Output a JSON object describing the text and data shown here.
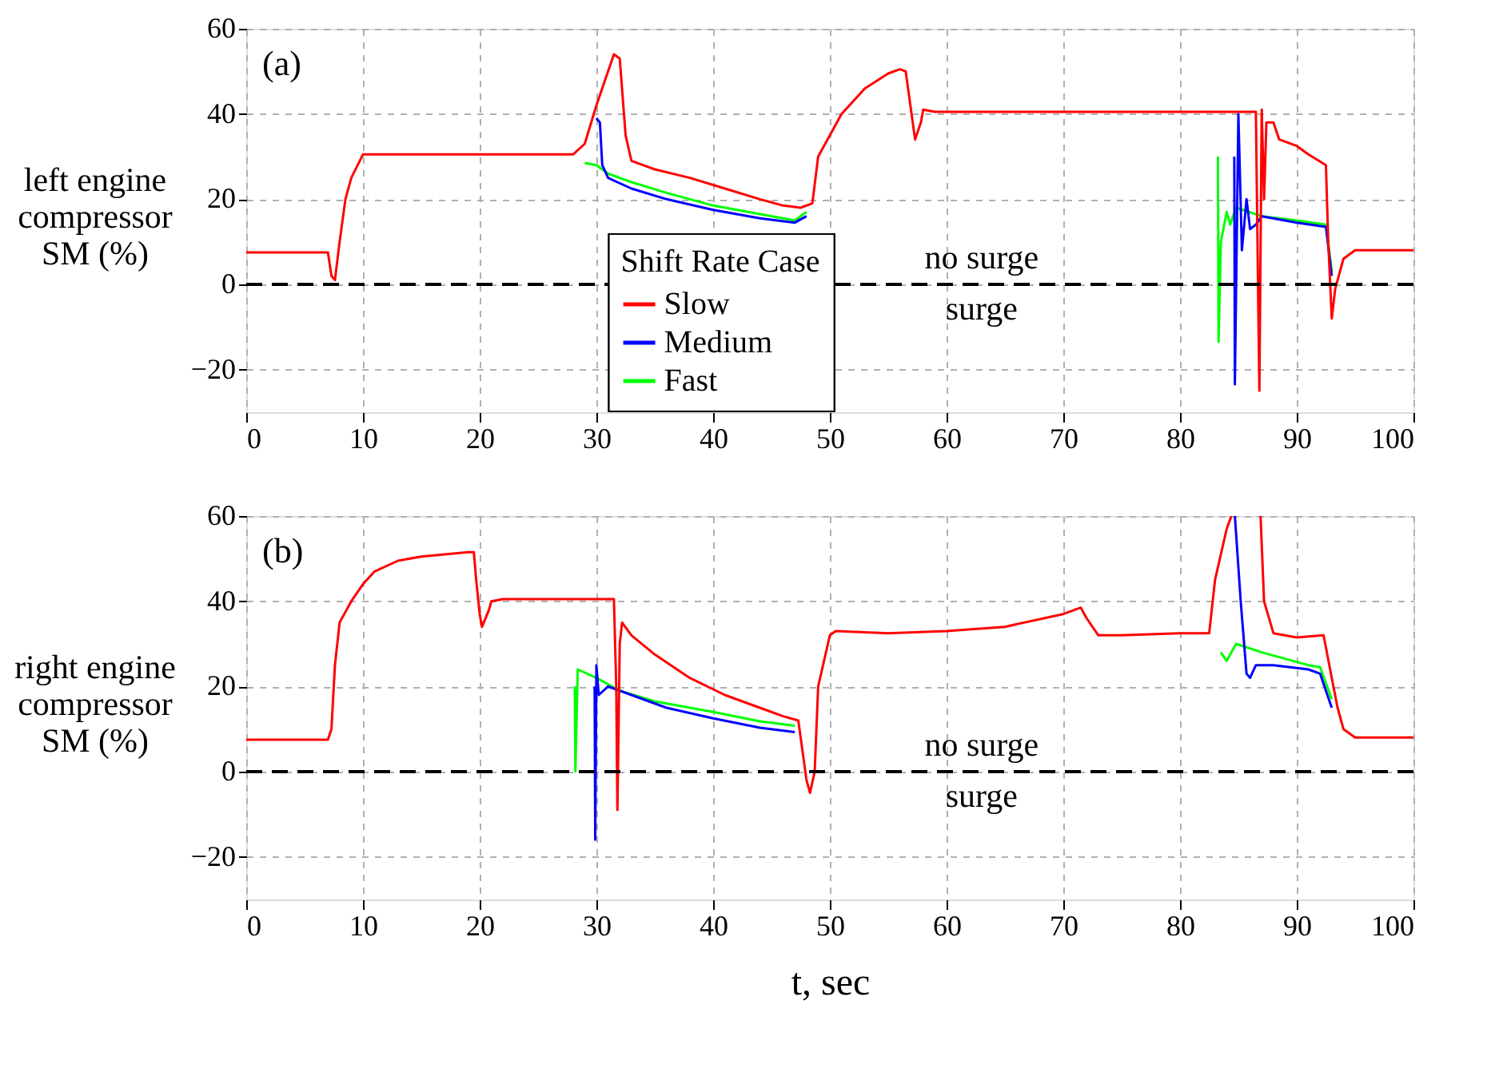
{
  "chart_data": [
    {
      "type": "line",
      "ylabel": "left engine\ncompressor\nSM (%)",
      "xlim": [
        0,
        100
      ],
      "ylim": [
        -30,
        60
      ],
      "xticks": [
        0,
        10,
        20,
        30,
        40,
        50,
        60,
        70,
        80,
        90,
        100
      ],
      "yticks": [
        -20,
        0,
        20,
        40,
        60
      ],
      "grid": true,
      "legend": "bottom",
      "legend_title": "Shift Rate Case",
      "line_style": "solid",
      "annotations": [
        "(a)",
        "no surge",
        "surge"
      ],
      "ref_lines": [
        {
          "axis": "y",
          "value": 0,
          "color": "#000000",
          "line_style": "dashed"
        }
      ],
      "series": [
        {
          "name": "Slow",
          "color": "#ff0000",
          "x": [
            0,
            7,
            7.3,
            7.6,
            8,
            8.5,
            9,
            10,
            28,
            29,
            30,
            31,
            31.5,
            32,
            32.5,
            33,
            35,
            38,
            41,
            44,
            46,
            47.5,
            48.5,
            49,
            51,
            53,
            55,
            56,
            56.5,
            57,
            57.3,
            57.8,
            58,
            59,
            86.5,
            86.7,
            86.8,
            87,
            87.2,
            87.4,
            88,
            88.5,
            90,
            91,
            92.5,
            92.7,
            93,
            93.3,
            94,
            95,
            100
          ],
          "values": [
            7.5,
            7.5,
            2,
            1,
            10,
            20,
            25,
            30.5,
            30.5,
            33,
            42,
            50,
            54,
            53,
            35,
            29,
            27,
            25,
            22.5,
            20,
            18.5,
            18,
            19,
            30,
            40,
            46,
            49.5,
            50.5,
            50,
            40,
            34,
            38,
            41,
            40.5,
            40.5,
            -4,
            -25,
            41,
            20,
            38,
            38,
            34,
            32.5,
            30.5,
            28,
            10,
            -8,
            -1,
            6,
            8,
            8
          ]
        },
        {
          "name": "Medium",
          "color": "#0000ff",
          "x": [
            30,
            30.3,
            30.5,
            31,
            33,
            36,
            40,
            44,
            47,
            48,
            66,
            84.65,
            84.7,
            85,
            85.3,
            85.7,
            86,
            86.5,
            87,
            90,
            92.5,
            93
          ],
          "values": [
            39,
            38,
            28,
            25,
            22.5,
            20,
            17.5,
            15.5,
            14.5,
            16,
            null,
            30,
            -23.5,
            40,
            8,
            20,
            13,
            14,
            16,
            14.5,
            13.5,
            2
          ]
        },
        {
          "name": "Fast",
          "color": "#00ff00",
          "x": [
            29,
            30,
            30.5,
            31,
            33,
            36,
            40,
            44,
            47,
            48,
            66,
            83.25,
            83.3,
            83.5,
            84,
            84.3,
            84.8,
            87,
            90,
            92.5,
            93
          ],
          "values": [
            28.5,
            28,
            27,
            26,
            24,
            21.5,
            18.5,
            16.5,
            15,
            17,
            null,
            30,
            -13.5,
            10,
            17,
            14,
            18,
            16,
            15,
            14,
            3
          ]
        }
      ]
    },
    {
      "type": "line",
      "ylabel": "right engine\ncompressor\nSM (%)",
      "xlabel": "t, sec",
      "xlim": [
        0,
        100
      ],
      "ylim": [
        -30,
        60
      ],
      "xticks": [
        0,
        10,
        20,
        30,
        40,
        50,
        60,
        70,
        80,
        90,
        100
      ],
      "yticks": [
        -20,
        0,
        20,
        40,
        60
      ],
      "grid": true,
      "line_style": "solid",
      "annotations": [
        "(b)",
        "no surge",
        "surge"
      ],
      "ref_lines": [
        {
          "axis": "y",
          "value": 0,
          "color": "#000000",
          "line_style": "dashed"
        }
      ],
      "series": [
        {
          "color": "#ff0000",
          "x": [
            0,
            7,
            7.3,
            7.6,
            8,
            9,
            10,
            11,
            13,
            15,
            17,
            19,
            19.5,
            19.7,
            20,
            20.2,
            20.8,
            21,
            22,
            31.5,
            31.7,
            31.8,
            32,
            32.2,
            33,
            35,
            38,
            41,
            44,
            46,
            47.3,
            47.5,
            48,
            48.3,
            48.7,
            49,
            50,
            50.5,
            55,
            60,
            65,
            70,
            71.5,
            72,
            73,
            75,
            80,
            82.5,
            83,
            84,
            84.4,
            85.5,
            86.9,
            87.2,
            88,
            90,
            92.3,
            93,
            93.5,
            94,
            95,
            100
          ],
          "values": [
            7.5,
            7.5,
            10,
            25,
            35,
            40,
            44,
            47,
            49.5,
            50.5,
            51,
            51.5,
            51.5,
            45,
            37,
            34,
            38,
            40,
            40.5,
            40.5,
            20,
            -9,
            30,
            35,
            32,
            27.5,
            22,
            18,
            15,
            13,
            12,
            8,
            -2,
            -5,
            0,
            20,
            32,
            33,
            32.5,
            33,
            34,
            37,
            38.5,
            36,
            32,
            32,
            32.5,
            32.5,
            45,
            57,
            60,
            null,
            60,
            40,
            32.5,
            31.5,
            32,
            22,
            15,
            10,
            8,
            8
          ]
        },
        {
          "color": "#0000ff",
          "x": [
            29.85,
            29.9,
            30,
            30.2,
            31,
            33,
            36,
            40,
            44,
            47,
            66,
            84.7,
            85.2,
            85.7,
            86,
            86.5,
            88,
            91,
            92,
            93
          ],
          "values": [
            20,
            -16,
            25,
            18,
            20,
            18,
            15,
            12.5,
            10.3,
            9.3,
            null,
            60,
            40,
            23,
            22,
            25,
            25,
            24,
            23,
            15
          ]
        },
        {
          "color": "#00ff00",
          "x": [
            28.15,
            28.2,
            28.4,
            30,
            32,
            35,
            40,
            44,
            47,
            66,
            83.5,
            84,
            84.8,
            87,
            91,
            92,
            93
          ],
          "values": [
            20,
            0,
            24,
            22,
            19,
            16.5,
            14,
            11.8,
            10.8,
            null,
            28,
            26,
            30,
            28,
            25,
            24.5,
            17
          ]
        }
      ]
    }
  ]
}
